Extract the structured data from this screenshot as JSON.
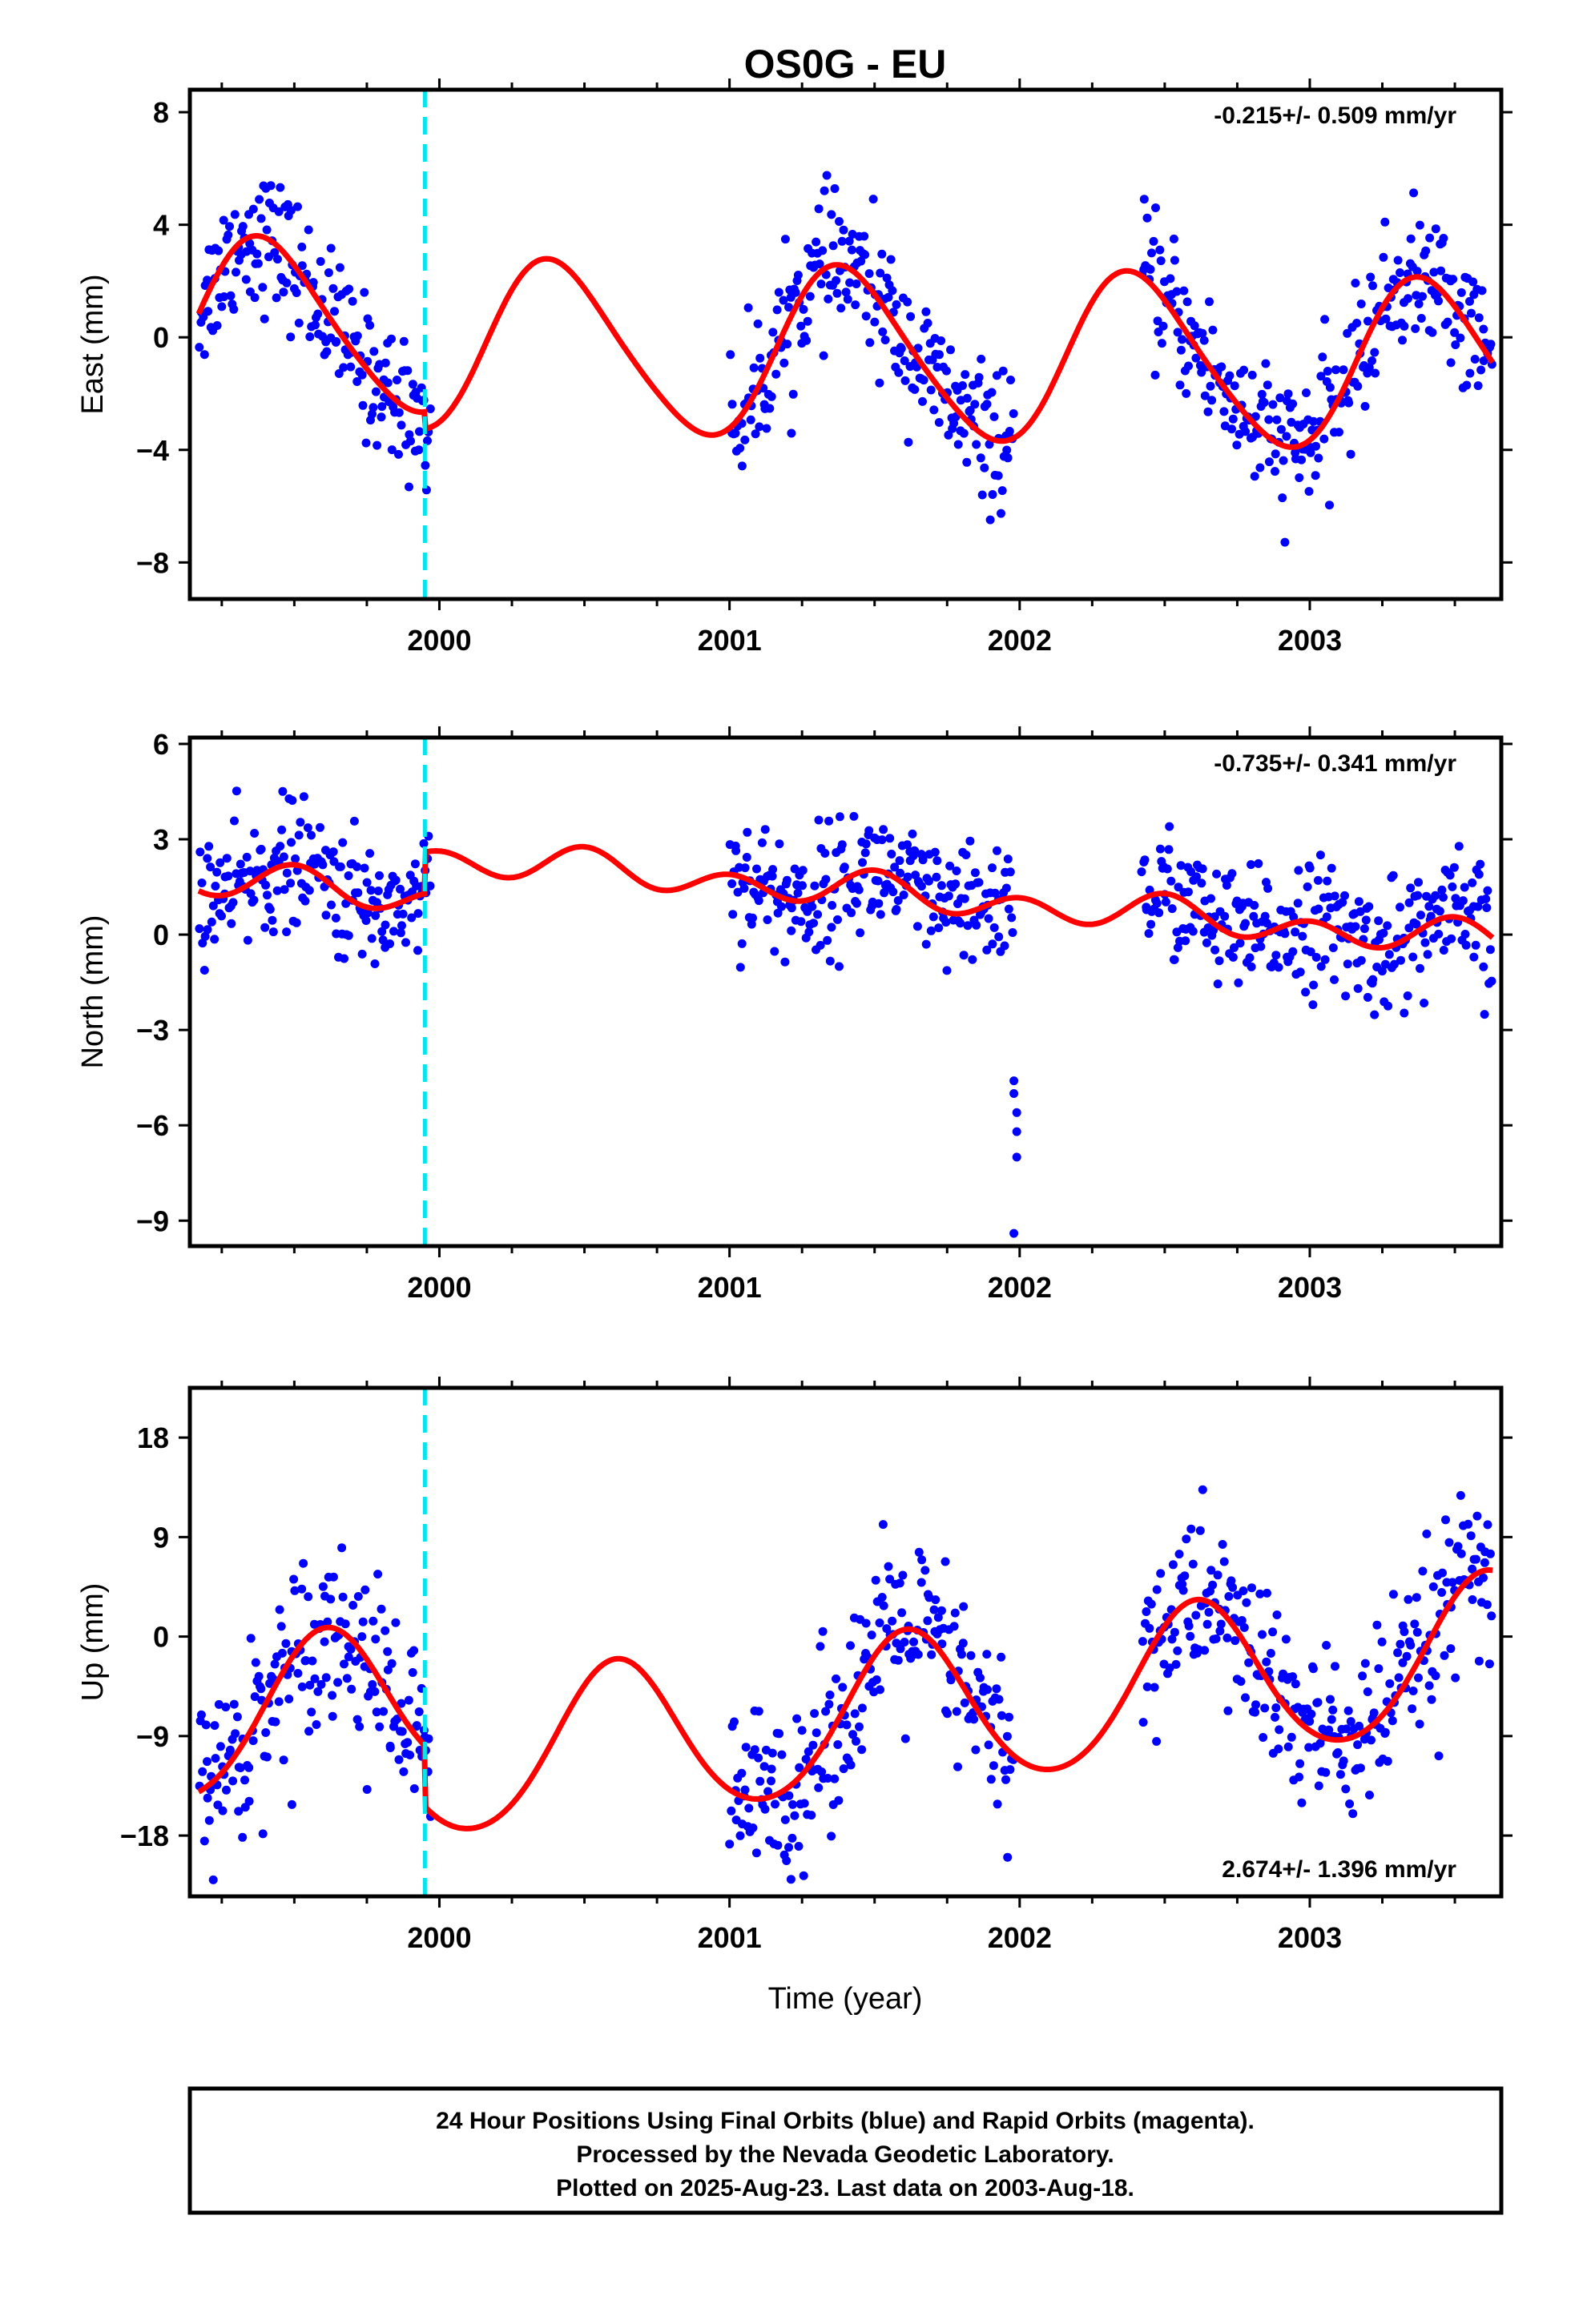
{
  "title": "OS0G - EU",
  "colors": {
    "points": "#0000ff",
    "fit": "#ff0000",
    "offset_line": "#00e5ee"
  },
  "x_axis_label": "Time (year)",
  "footer": {
    "line1": "24 Hour Positions Using Final Orbits (blue) and Rapid Orbits (magenta).",
    "line2": "Processed by the Nevada Geodetic Laboratory.",
    "line3": "Plotted on 2025-Aug-23. Last data on 2003-Aug-18."
  },
  "chart_data": [
    {
      "type": "scatter",
      "panel": "east",
      "ylabel": "East (mm)",
      "rate_text": "-0.215+/- 0.509 mm/yr",
      "rate_position": "top-right",
      "xlim": [
        1999.14,
        2003.66
      ],
      "ylim": [
        -9.3,
        8.8
      ],
      "yticks": [
        8,
        4,
        0,
        -4,
        -8
      ],
      "xticks": [
        2000,
        2001,
        2002,
        2003
      ],
      "offset_epoch": 1999.95,
      "data_segments": [
        [
          1999.17,
          1999.97
        ],
        [
          2001.0,
          2001.98
        ],
        [
          2002.42,
          2003.63
        ]
      ],
      "fit": {
        "start": 1999.17,
        "end": 2003.63,
        "bias": 0.0,
        "rate": -0.215,
        "t0": 2001.4,
        "annual_amp": 3.0,
        "annual_peak": 1999.4,
        "semiannual_amp": 0.35,
        "semiannual_peak": 1999.3,
        "offset_epoch": 1999.95,
        "offset": -0.6
      },
      "noise": 1.2,
      "points_per_year": 230
    },
    {
      "type": "scatter",
      "panel": "north",
      "ylabel": "North (mm)",
      "rate_text": "-0.735+/- 0.341 mm/yr",
      "rate_position": "top-right",
      "xlim": [
        1999.14,
        2003.66
      ],
      "ylim": [
        -9.8,
        6.2
      ],
      "yticks": [
        6,
        3,
        0,
        -3,
        -6,
        -9
      ],
      "xticks": [
        2000,
        2001,
        2002,
        2003
      ],
      "offset_epoch": 1999.95,
      "data_segments": [
        [
          1999.17,
          1999.97
        ],
        [
          2001.0,
          2001.98
        ],
        [
          2002.42,
          2003.63
        ]
      ],
      "fit": {
        "start": 1999.17,
        "end": 2003.63,
        "bias": 0.1,
        "rate": -0.735,
        "t0": 2001.4,
        "annual_amp": 0.25,
        "annual_peak": 1999.5,
        "semiannual_amp": 0.45,
        "semiannual_peak": 2000.0,
        "offset_epoch": 1999.95,
        "offset": 1.3
      },
      "noise": 1.0,
      "points_per_year": 230,
      "outliers": [
        [
          2001.98,
          -4.6
        ],
        [
          2001.98,
          -5.0
        ],
        [
          2001.99,
          -5.6
        ],
        [
          2001.99,
          -6.2
        ],
        [
          2001.99,
          -7.0
        ],
        [
          2001.98,
          -9.4
        ]
      ]
    },
    {
      "type": "scatter",
      "panel": "up",
      "ylabel": "Up (mm)",
      "rate_text": "2.674+/- 1.396 mm/yr",
      "rate_position": "bottom-right",
      "xlim": [
        1999.14,
        2003.66
      ],
      "ylim": [
        -23.5,
        22.5
      ],
      "yticks": [
        18,
        9,
        0,
        -9,
        -18
      ],
      "xticks": [
        2000,
        2001,
        2002,
        2003
      ],
      "offset_epoch": 1999.95,
      "data_segments": [
        [
          1999.17,
          1999.97
        ],
        [
          2001.0,
          2001.98
        ],
        [
          2002.42,
          2003.63
        ]
      ],
      "fit": {
        "start": 1999.17,
        "end": 2003.63,
        "bias": -2.0,
        "rate": 2.674,
        "t0": 2001.4,
        "annual_amp": 7.0,
        "annual_peak": 1999.61,
        "semiannual_amp": 0.6,
        "semiannual_peak": 1999.61,
        "offset_epoch": 1999.95,
        "offset": -5.5
      },
      "noise": 4.0,
      "points_per_year": 230
    }
  ]
}
